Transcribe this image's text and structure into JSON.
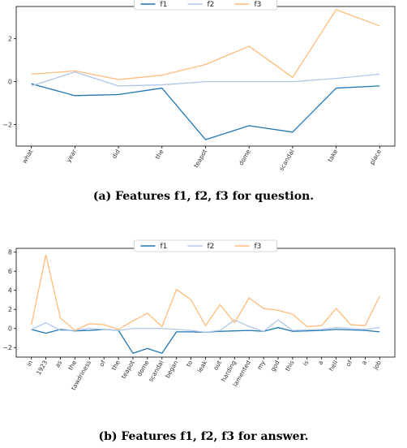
{
  "chart_data": [
    {
      "type": "line",
      "caption_label": "(a)",
      "caption_text": "Features f1, f2, f3 for question.",
      "categories": [
        "what",
        "year",
        "did",
        "the",
        "teapot",
        "dome",
        "scandal",
        "take",
        "place"
      ],
      "ylim": [
        -3,
        3.5
      ],
      "yticks": [
        -2,
        0,
        2
      ],
      "legend": "top-center",
      "grid": false,
      "series": [
        {
          "name": "f1",
          "color": "#1f77b4",
          "values": [
            -0.1,
            -0.65,
            -0.6,
            -0.3,
            -2.7,
            -2.05,
            -2.35,
            -0.3,
            -0.2
          ]
        },
        {
          "name": "f2",
          "color": "#aec7e8",
          "values": [
            -0.2,
            0.45,
            -0.2,
            -0.15,
            0.0,
            0.0,
            0.0,
            0.15,
            0.35
          ]
        },
        {
          "name": "f3",
          "color": "#ffbb78",
          "values": [
            0.35,
            0.5,
            0.1,
            0.3,
            0.8,
            1.65,
            0.2,
            3.35,
            2.6
          ]
        }
      ]
    },
    {
      "type": "line",
      "caption_label": "(b)",
      "caption_text": "Features f1, f2, f3 for answer.",
      "categories": [
        "in",
        "1923",
        "as",
        "the",
        "tawdriness",
        "of",
        "the",
        "teapot",
        "dome",
        "scandal",
        "began",
        "to",
        "leak",
        "out",
        "harding",
        "lamented",
        "my",
        "god",
        "this",
        "is",
        "a",
        "hell",
        "of",
        "a",
        "job"
      ],
      "ylim": [
        -3,
        8.4
      ],
      "yticks": [
        -2,
        0,
        2,
        4,
        6,
        8
      ],
      "legend": "top-center",
      "grid": false,
      "series": [
        {
          "name": "f1",
          "color": "#1f77b4",
          "values": [
            -0.1,
            -0.5,
            -0.1,
            -0.25,
            -0.2,
            -0.1,
            -0.2,
            -2.6,
            -2.1,
            -2.6,
            -0.35,
            -0.35,
            -0.4,
            -0.3,
            -0.25,
            -0.2,
            -0.3,
            0.1,
            -0.3,
            -0.25,
            -0.2,
            -0.1,
            -0.15,
            -0.2,
            -0.35
          ]
        },
        {
          "name": "f2",
          "color": "#aec7e8",
          "values": [
            -0.1,
            0.6,
            -0.2,
            -0.2,
            0.0,
            -0.1,
            -0.2,
            0.0,
            0.0,
            0.0,
            -0.1,
            -0.2,
            -0.4,
            -0.2,
            0.9,
            0.2,
            -0.3,
            0.9,
            -0.2,
            -0.15,
            -0.1,
            0.1,
            0.0,
            -0.1,
            0.1
          ]
        },
        {
          "name": "f3",
          "color": "#ffbb78",
          "values": [
            0.4,
            7.7,
            1.1,
            -0.2,
            0.5,
            0.4,
            -0.1,
            0.8,
            1.6,
            0.2,
            4.1,
            3.0,
            0.3,
            2.5,
            0.6,
            3.2,
            2.1,
            1.9,
            1.5,
            0.2,
            0.3,
            2.1,
            0.4,
            0.3,
            3.4
          ]
        }
      ]
    }
  ]
}
